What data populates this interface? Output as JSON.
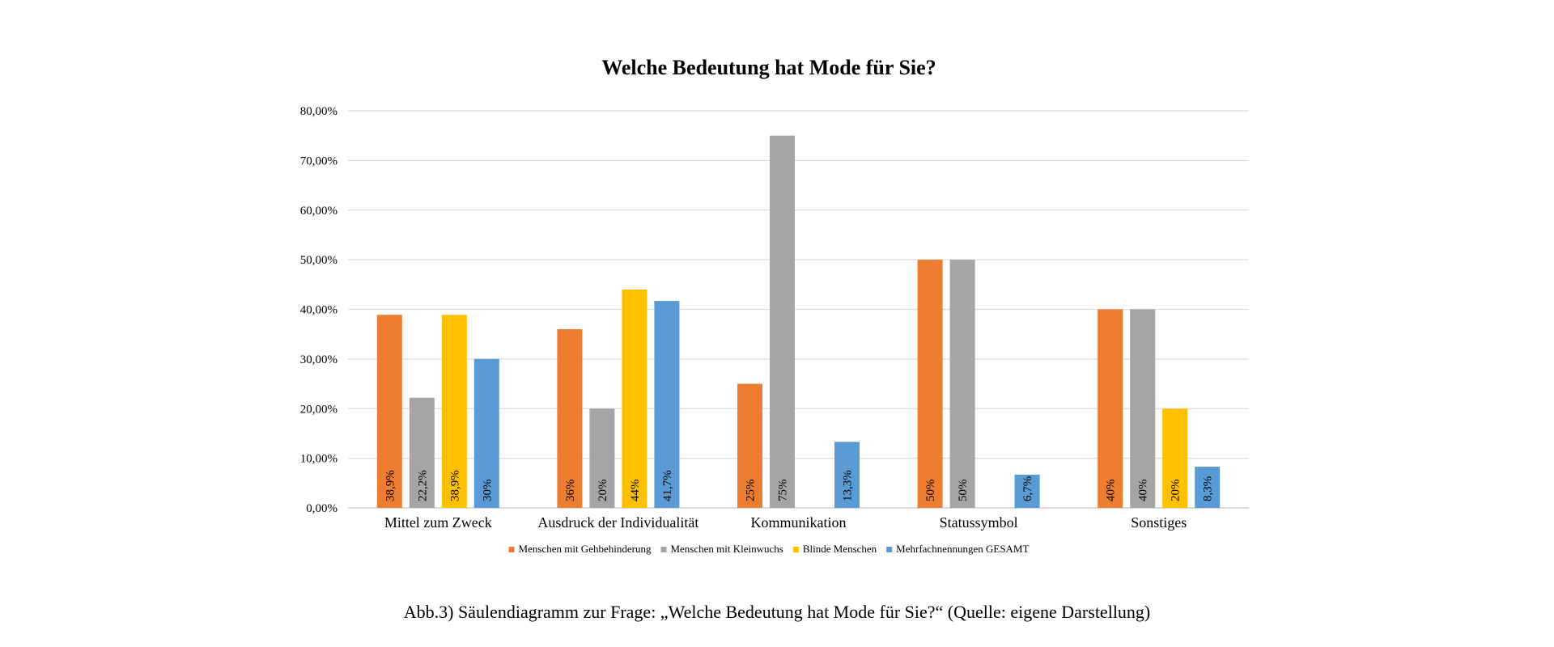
{
  "chart_data": {
    "type": "bar",
    "title": "Welche Bedeutung hat Mode für Sie?",
    "xlabel": "",
    "ylabel": "",
    "ylim": [
      0,
      80
    ],
    "y_ticks": [
      0,
      10,
      20,
      30,
      40,
      50,
      60,
      70,
      80
    ],
    "y_tick_labels": [
      "0,00%",
      "10,00%",
      "20,00%",
      "30,00%",
      "40,00%",
      "50,00%",
      "60,00%",
      "70,00%",
      "80,00%"
    ],
    "grid": true,
    "legend_position": "bottom",
    "categories": [
      "Mittel zum Zweck",
      "Ausdruck der Individualität",
      "Kommunikation",
      "Statussymbol",
      "Sonstiges"
    ],
    "series": [
      {
        "name": "Menschen mit Gehbehinderung",
        "color": "#ED7D31",
        "values": [
          38.9,
          36,
          25,
          50,
          40
        ],
        "labels": [
          "38,9%",
          "36%",
          "25%",
          "50%",
          "40%"
        ]
      },
      {
        "name": "Menschen mit Kleinwuchs",
        "color": "#A5A5A5",
        "values": [
          22.2,
          20,
          75,
          50,
          40
        ],
        "labels": [
          "22,2%",
          "20%",
          "75%",
          "50%",
          "40%"
        ]
      },
      {
        "name": "Blinde Menschen",
        "color": "#FFC000",
        "values": [
          38.9,
          44,
          null,
          null,
          20
        ],
        "labels": [
          "38,9%",
          "44%",
          null,
          null,
          "20%"
        ]
      },
      {
        "name": "Mehrfachnennungen GESAMT",
        "color": "#5B9BD5",
        "values": [
          30,
          41.7,
          13.3,
          6.7,
          8.3
        ],
        "labels": [
          "30%",
          "41,7%",
          "13,3%",
          "6,7%",
          "8,3%"
        ]
      }
    ]
  },
  "caption": "Abb.3) Säulendiagramm zur Frage: „Welche Bedeutung hat Mode für Sie?“ (Quelle: eigene Darstellung)"
}
